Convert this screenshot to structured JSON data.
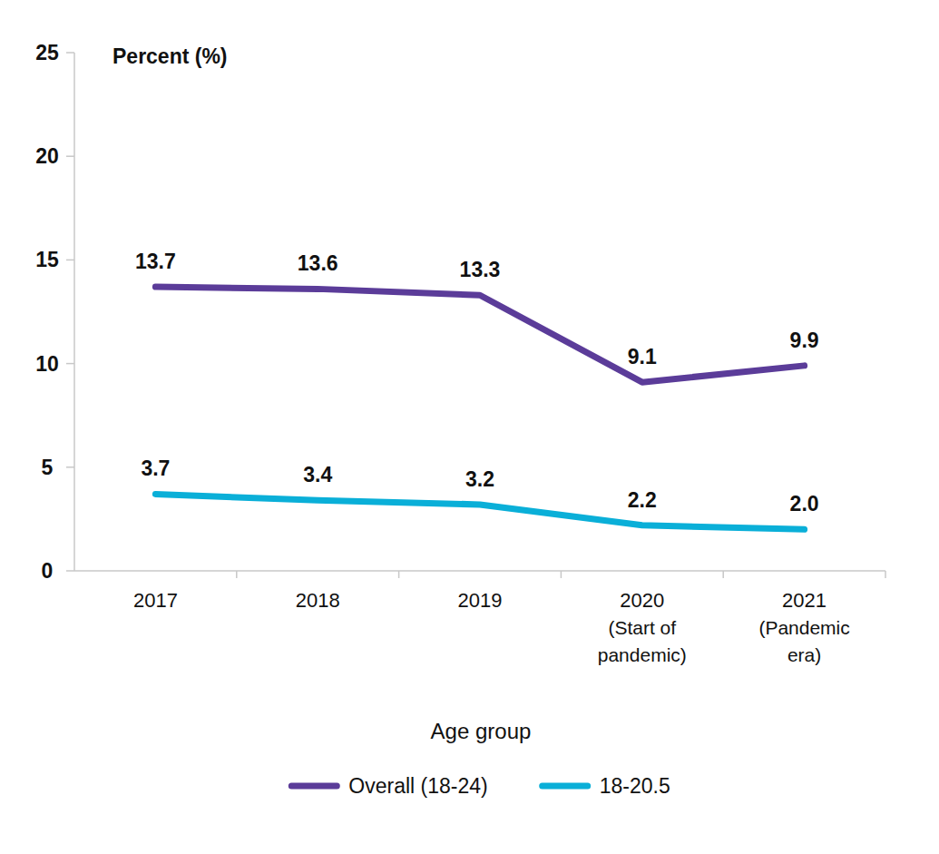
{
  "chart_data": {
    "type": "line",
    "y_label": "Percent (%)",
    "x_label": "Age group",
    "categories": [
      "2017",
      "2018",
      "2019",
      "2020\n(Start of\npandemic)",
      "2021\n(Pandemic\nera)"
    ],
    "series": [
      {
        "name": "Overall (18-24)",
        "color": "#5b3c99",
        "values": [
          13.7,
          13.6,
          13.3,
          9.1,
          9.9
        ]
      },
      {
        "name": "18-20.5",
        "color": "#0aafd8",
        "values": [
          3.7,
          3.4,
          3.2,
          2.2,
          2.0
        ],
        "value_labels": [
          "3.7",
          "3.4",
          "3.2",
          "2.2",
          "2.0"
        ]
      }
    ],
    "ylim": [
      0,
      25
    ],
    "yticks": [
      0,
      5,
      10,
      15,
      20,
      25
    ],
    "grid": false,
    "data_labels": true,
    "legend": "bottom"
  }
}
